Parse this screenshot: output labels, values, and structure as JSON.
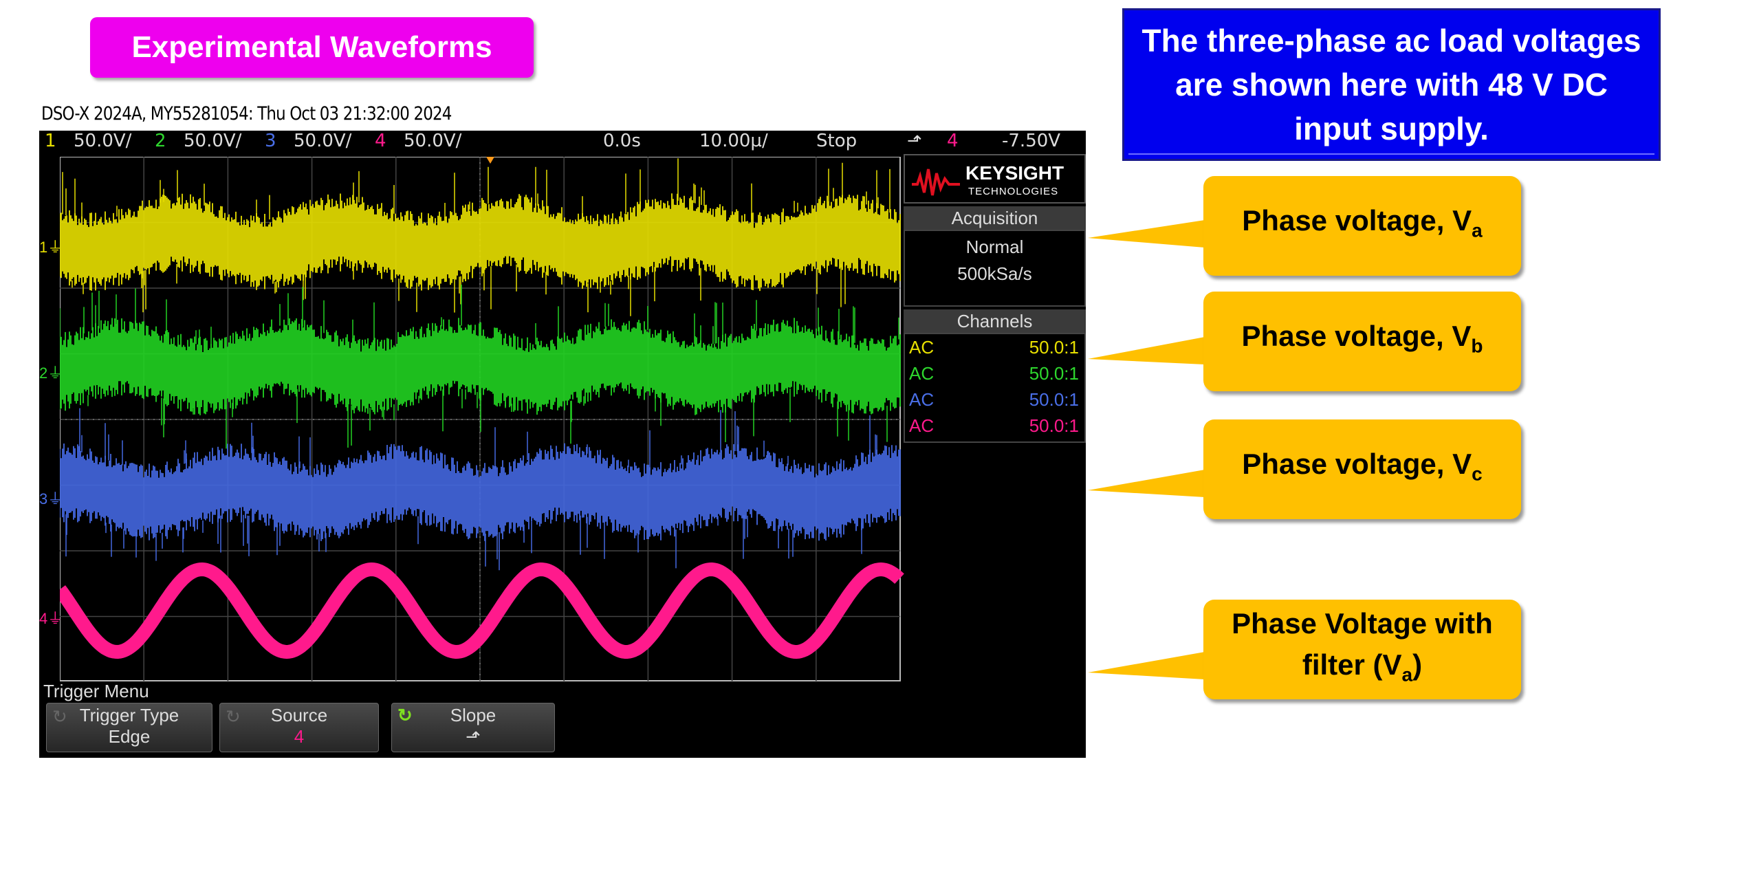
{
  "title": "Experimental Waveforms",
  "info": "The three-phase ac load voltages are shown here with 48 V DC input supply.",
  "scope": {
    "header": "DSO-X 2024A, MY55281054: Thu Oct 03 21:32:00 2024",
    "status": {
      "ch1_num": "1",
      "ch1_scale": "50.0V/",
      "ch2_num": "2",
      "ch2_scale": "50.0V/",
      "ch3_num": "3",
      "ch3_scale": "50.0V/",
      "ch4_num": "4",
      "ch4_scale": "50.0V/",
      "time_offset": "0.0s",
      "time_scale": "10.00µ/",
      "run_state": "Stop",
      "trigger_slope": "⬏",
      "trigger_source": "4",
      "trigger_level": "-7.50V"
    },
    "brand": {
      "name": "KEYSIGHT",
      "sub": "TECHNOLOGIES"
    },
    "acquisition": {
      "title": "Acquisition",
      "mode": "Normal",
      "rate": "500kSa/s"
    },
    "channels": {
      "title": "Channels",
      "rows": [
        {
          "coupling": "AC",
          "probe": "50.0:1",
          "color": "#e8e000"
        },
        {
          "coupling": "AC",
          "probe": "50.0:1",
          "color": "#2ed82e"
        },
        {
          "coupling": "AC",
          "probe": "50.0:1",
          "color": "#4a6fe8"
        },
        {
          "coupling": "AC",
          "probe": "50.0:1",
          "color": "#ff1a8c"
        }
      ]
    },
    "markers": [
      "1",
      "2",
      "3",
      "4"
    ],
    "menu_title": "Trigger Menu",
    "softkeys": [
      {
        "label": "Trigger Type",
        "value": "Edge"
      },
      {
        "label": "Source",
        "value": "4"
      },
      {
        "label": "Slope",
        "value": "⬏"
      }
    ],
    "trace_colors": {
      "ch1": "#e8e000",
      "ch2": "#22d322",
      "ch3": "#4468e0",
      "ch4": "#ff1a8c"
    }
  },
  "callouts": [
    {
      "text": "Phase voltage, V",
      "sub": "a"
    },
    {
      "text": "Phase voltage, V",
      "sub": "b"
    },
    {
      "text": "Phase voltage, V",
      "sub": "c"
    },
    {
      "text": "Phase Voltage with filter (V",
      "sub": "a",
      "end": ")"
    }
  ]
}
